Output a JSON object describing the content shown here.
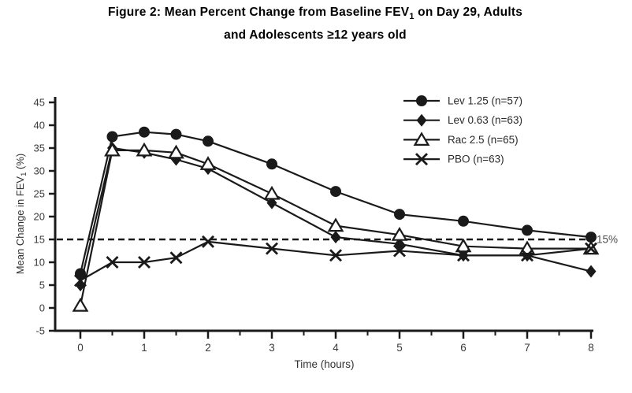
{
  "figure": {
    "title_line1_pre": "Figure 2: Mean Percent Change from Baseline FEV",
    "title_sub": "1",
    "title_line1_post": " on Day 29, Adults",
    "title_line2": "and Adolescents ≥12 years old"
  },
  "chart_data": {
    "type": "line",
    "x": [
      0,
      0.5,
      1,
      1.5,
      2,
      3,
      4,
      5,
      6,
      7,
      8
    ],
    "xlabel": "Time (hours)",
    "ylabel_pre": "Mean Change in FEV",
    "ylabel_sub": "1",
    "ylabel_post": " (%)",
    "xlim": [
      0,
      8
    ],
    "ylim": [
      -5,
      45
    ],
    "ytick_step": 5,
    "xtick_major_step": 1,
    "xtick_minor_step": 0.5,
    "xticks": [
      "0",
      "1",
      "2",
      "3",
      "4",
      "5",
      "6",
      "7",
      "8"
    ],
    "yticks": [
      "45",
      "40",
      "35",
      "30",
      "25",
      "20",
      "15",
      "10",
      "5",
      "0",
      "-5"
    ],
    "grid": false,
    "legend_position": "upper-right",
    "line_color": "#1a1a1a",
    "tick_label_color": "#3a3a3a",
    "reference_line": {
      "y": 15,
      "label": "15%",
      "style": "dashed",
      "label_color": "#4d4d4d"
    },
    "series": [
      {
        "name": "Lev 1.25 (n=57)",
        "marker": "filled-circle",
        "values": [
          7.5,
          37.5,
          38.5,
          38,
          36.5,
          31.5,
          25.5,
          20.5,
          19,
          17,
          15.5
        ]
      },
      {
        "name": "Lev 0.63 (n=63)",
        "marker": "filled-diamond",
        "values": [
          5,
          35,
          34,
          32.5,
          30.5,
          23,
          15.5,
          14,
          11.5,
          11.5,
          8
        ]
      },
      {
        "name": "Rac 2.5 (n=65)",
        "marker": "open-triangle",
        "values": [
          0.5,
          34.5,
          34.5,
          34,
          31.5,
          25,
          18,
          16,
          13.5,
          13,
          13
        ]
      },
      {
        "name": "PBO (n=63)",
        "marker": "x-cross",
        "values": [
          6,
          10,
          10,
          11,
          14.5,
          13,
          11.5,
          12.5,
          11.5,
          11.5,
          13
        ]
      }
    ]
  }
}
